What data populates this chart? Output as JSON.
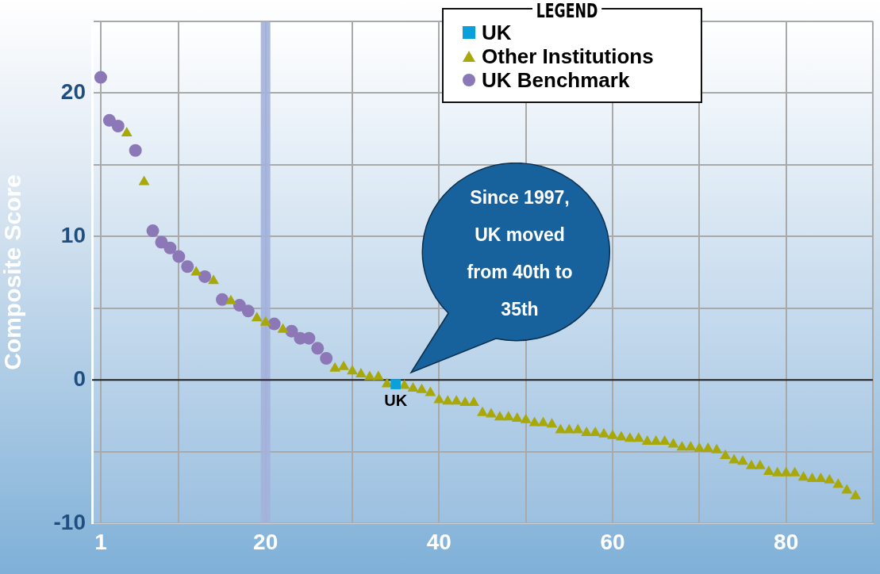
{
  "chart_data": {
    "type": "scatter",
    "ylabel": "Composite Score",
    "legend_title": "LEGEND",
    "legend": "top right",
    "grid": true,
    "xlim": [
      0,
      90
    ],
    "xticks": [
      1,
      {
        "value": 10,
        "label": null
      },
      20,
      {
        "value": 30,
        "label": null
      },
      40,
      {
        "value": 50,
        "label": null
      },
      60,
      {
        "value": 70,
        "label": null
      },
      80,
      {
        "value": 90,
        "label": null
      }
    ],
    "ylim": [
      -10,
      25
    ],
    "yticks": [
      -10,
      {
        "value": -5,
        "label": null
      },
      0,
      {
        "value": 5,
        "label": null
      },
      10,
      {
        "value": 15,
        "label": null
      },
      20,
      {
        "value": 25,
        "label": null
      }
    ],
    "ref_lines": [
      {
        "axis": "x",
        "value": 20,
        "color": "#a3b1dc"
      },
      {
        "axis": "y",
        "value": 0,
        "color": "#222222"
      }
    ],
    "annotations": [
      "Since 1997, UK moved from 40th to 35th",
      {
        "text": "UK",
        "x": 35,
        "y": -0.3
      }
    ],
    "series": [
      {
        "name": "UK",
        "color": "#0aa0dc",
        "marker": "square",
        "x": [
          35
        ],
        "values": [
          -0.3
        ]
      },
      {
        "name": "Other Institutions",
        "color": "#a8a80a",
        "marker": "triangle",
        "x": [
          4,
          6,
          12,
          14,
          16,
          19,
          20,
          22,
          28,
          29,
          30,
          31,
          32,
          33,
          34,
          36,
          37,
          38,
          39,
          40,
          41,
          42,
          43,
          44,
          45,
          46,
          47,
          48,
          49,
          50,
          51,
          52,
          53,
          54,
          55,
          56,
          57,
          58,
          59,
          60,
          61,
          62,
          63,
          64,
          65,
          66,
          67,
          68,
          69,
          70,
          71,
          72,
          73,
          74,
          75,
          76,
          77,
          78,
          79,
          80,
          81,
          82,
          83,
          84,
          85,
          86,
          87,
          88
        ],
        "values": [
          17.2,
          13.8,
          7.5,
          6.9,
          5.5,
          4.3,
          4.0,
          3.5,
          0.8,
          0.9,
          0.6,
          0.4,
          0.2,
          0.2,
          -0.3,
          -0.4,
          -0.6,
          -0.7,
          -0.9,
          -1.4,
          -1.5,
          -1.5,
          -1.6,
          -1.6,
          -2.3,
          -2.4,
          -2.6,
          -2.6,
          -2.7,
          -2.8,
          -3.0,
          -3.0,
          -3.1,
          -3.5,
          -3.5,
          -3.5,
          -3.7,
          -3.7,
          -3.8,
          -3.9,
          -4.0,
          -4.1,
          -4.1,
          -4.3,
          -4.3,
          -4.3,
          -4.5,
          -4.7,
          -4.7,
          -4.8,
          -4.8,
          -4.9,
          -5.3,
          -5.6,
          -5.7,
          -6.0,
          -6.0,
          -6.4,
          -6.5,
          -6.5,
          -6.5,
          -6.8,
          -6.9,
          -6.9,
          -7.0,
          -7.3,
          -7.7,
          -8.1
        ]
      },
      {
        "name": "UK Benchmark",
        "color": "#8c78b6",
        "marker": "circle",
        "x": [
          1,
          2,
          3,
          5,
          7,
          8,
          9,
          10,
          11,
          13,
          15,
          17,
          18,
          21,
          23,
          24,
          25,
          26,
          27
        ],
        "values": [
          21.1,
          18.1,
          17.7,
          16.0,
          10.4,
          9.6,
          9.2,
          8.6,
          7.9,
          7.2,
          5.6,
          5.2,
          4.8,
          3.9,
          3.4,
          2.9,
          2.9,
          2.2,
          1.5
        ]
      }
    ]
  }
}
